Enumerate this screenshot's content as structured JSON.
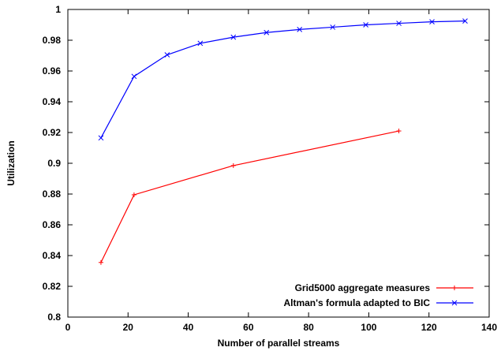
{
  "chart_data": {
    "type": "line",
    "title": "",
    "xlabel": "Number of parallel streams",
    "ylabel": "Utilization",
    "xlim": [
      0,
      140
    ],
    "ylim": [
      0.8,
      1.0
    ],
    "x_ticks": [
      0,
      20,
      40,
      60,
      80,
      100,
      120,
      140
    ],
    "x_tick_labels": [
      "0",
      "20",
      "40",
      "60",
      "80",
      "100",
      "120",
      "140"
    ],
    "y_ticks": [
      0.8,
      0.82,
      0.84,
      0.86,
      0.88,
      0.9,
      0.92,
      0.94,
      0.96,
      0.98,
      1.0
    ],
    "y_tick_labels": [
      "0.8",
      "0.82",
      "0.84",
      "0.86",
      "0.88",
      "0.9",
      "0.92",
      "0.94",
      "0.96",
      "0.98",
      "1"
    ],
    "grid": false,
    "legend_position": "bottom-right",
    "series": [
      {
        "name": "Grid5000 aggregate measures",
        "color": "#ff0000",
        "marker": "plus",
        "x": [
          11,
          22,
          55,
          110
        ],
        "y": [
          0.8355,
          0.8795,
          0.8985,
          0.921
        ]
      },
      {
        "name": "Altman's formula adapted to BIC",
        "color": "#0000ff",
        "marker": "x",
        "x": [
          11,
          22,
          33,
          44,
          55,
          66,
          77,
          88,
          99,
          110,
          121,
          132
        ],
        "y": [
          0.9165,
          0.9565,
          0.9705,
          0.978,
          0.982,
          0.985,
          0.987,
          0.9885,
          0.99,
          0.991,
          0.992,
          0.9925
        ]
      }
    ]
  }
}
